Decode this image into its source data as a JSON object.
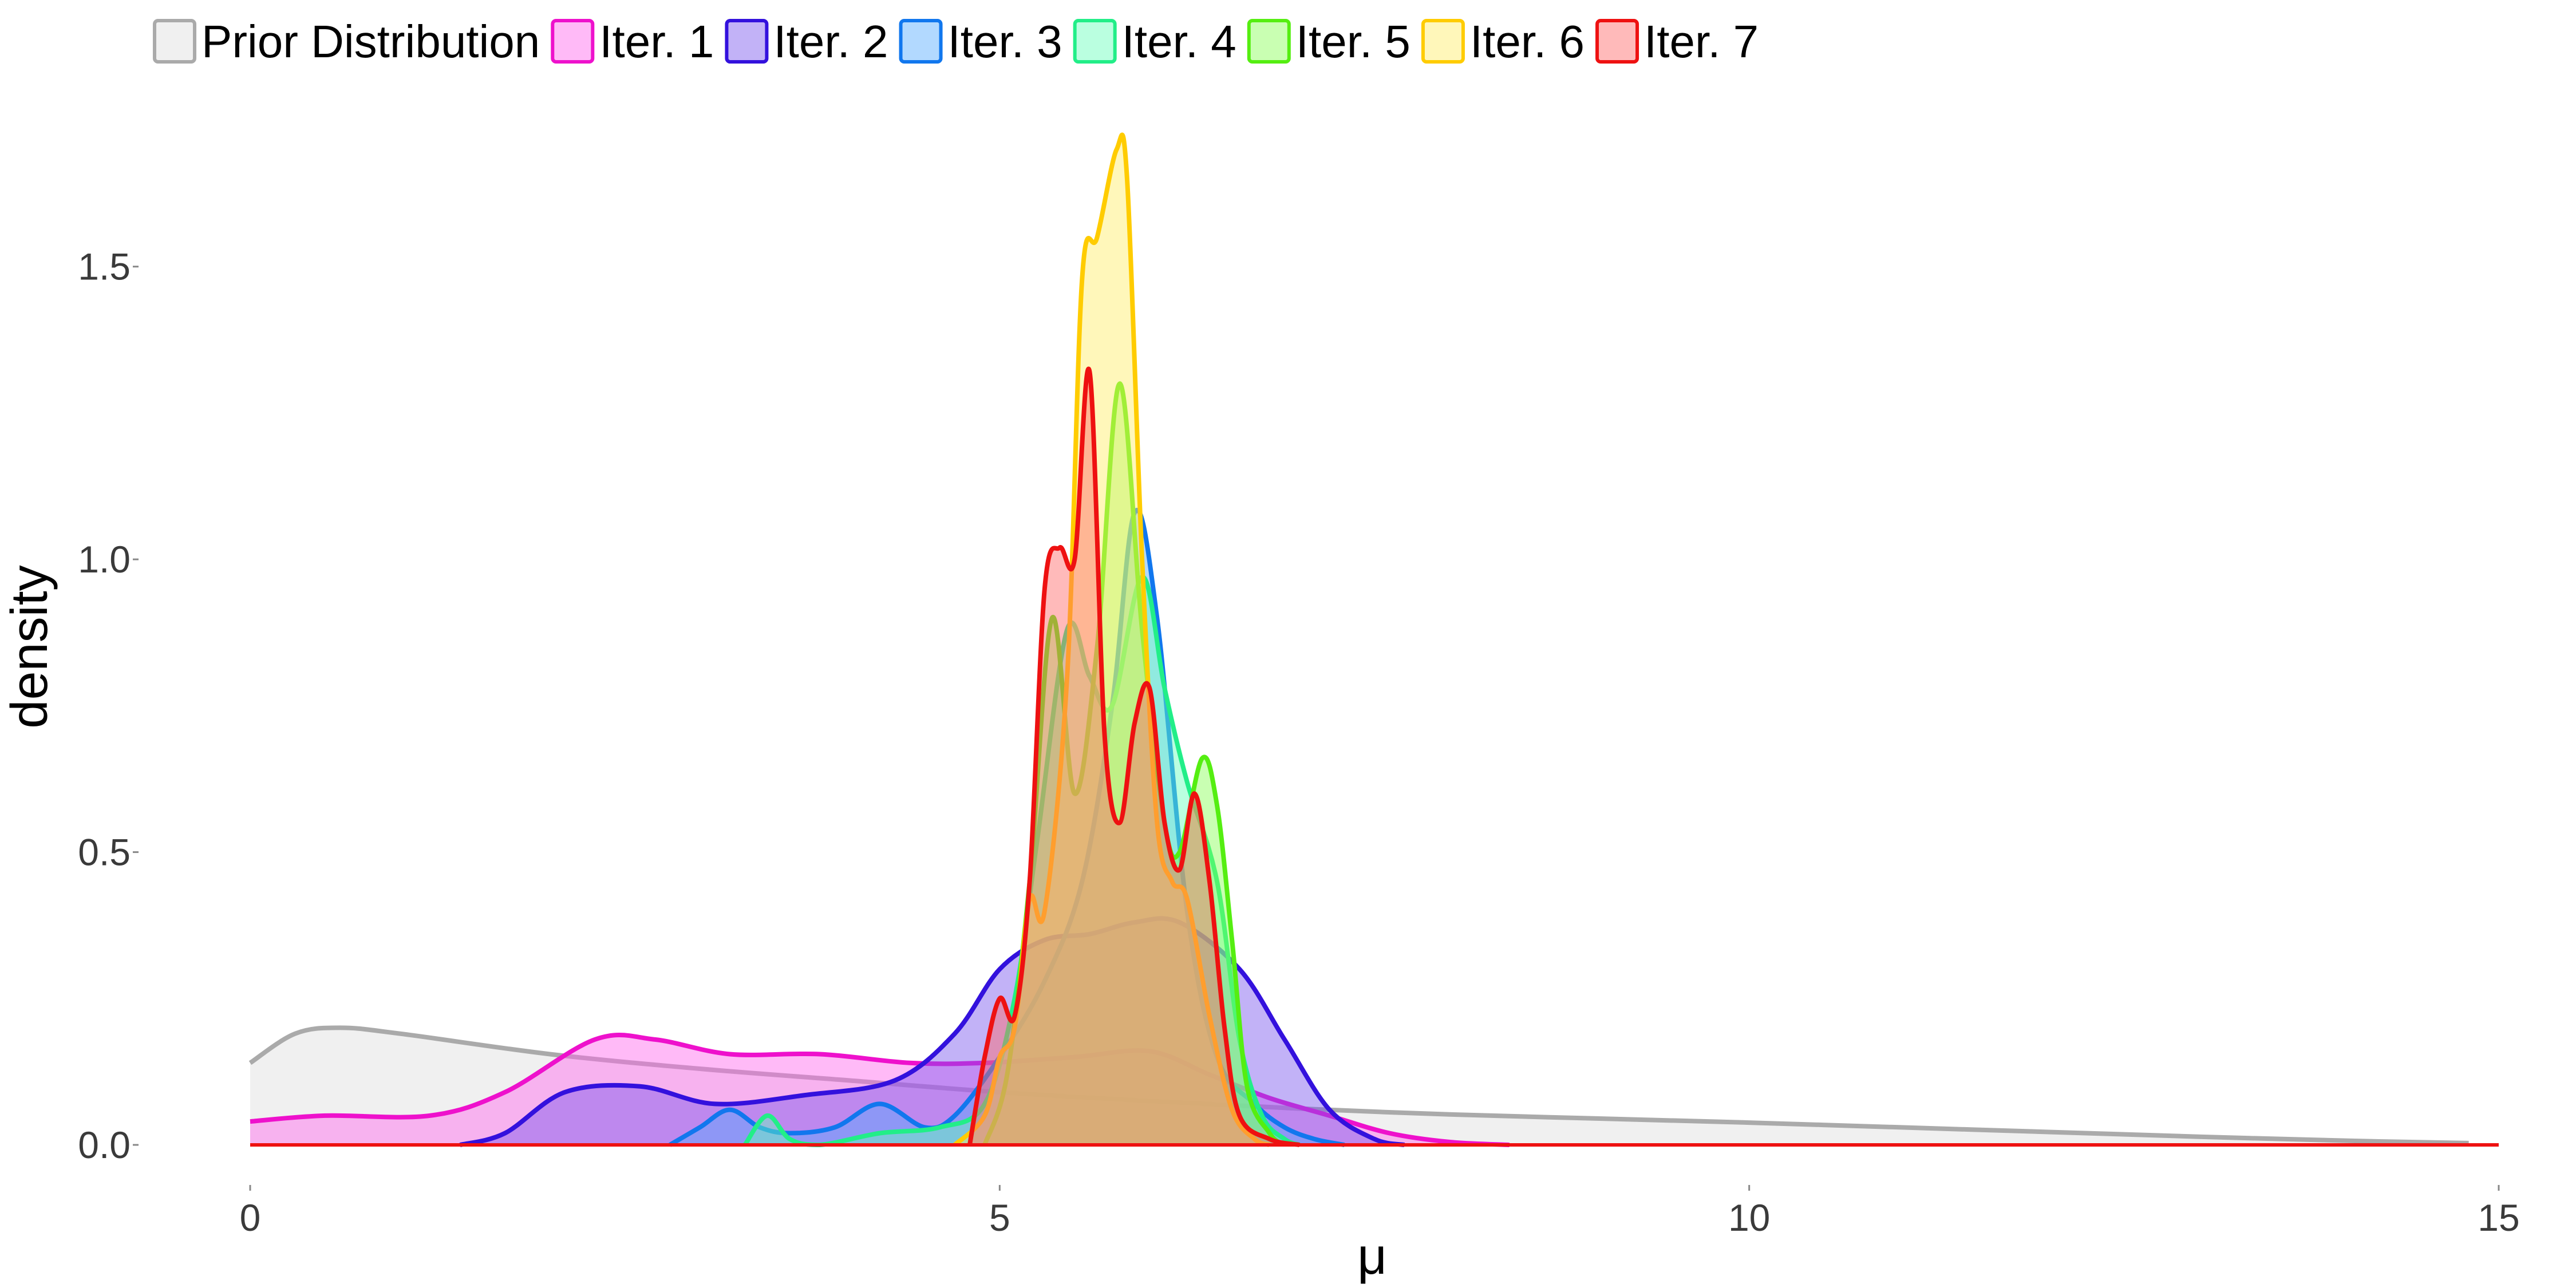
{
  "chart_data": {
    "type": "area",
    "title": "",
    "xlabel": "μ",
    "ylabel": "density",
    "xlim": [
      0,
      15
    ],
    "ylim": [
      0,
      1.75
    ],
    "x_ticks": [
      0,
      5,
      10,
      15
    ],
    "x_tick_labels": [
      "0",
      "5",
      "10",
      "15"
    ],
    "y_ticks": [
      0.0,
      0.5,
      1.0,
      1.5
    ],
    "y_tick_labels": [
      "0.0",
      "0.5",
      "1.0",
      "1.5"
    ],
    "grid": false,
    "legend_position": "top",
    "series": [
      {
        "name": "Prior Distribution",
        "color": "#AAAAAA",
        "fill": "#EEEEEE",
        "fill_opacity": 0.9,
        "points": [
          [
            0,
            0.14
          ],
          [
            0.3,
            0.19
          ],
          [
            0.6,
            0.2
          ],
          [
            1,
            0.19
          ],
          [
            2,
            0.155
          ],
          [
            3,
            0.13
          ],
          [
            4,
            0.11
          ],
          [
            5,
            0.09
          ],
          [
            6,
            0.075
          ],
          [
            7,
            0.062
          ],
          [
            8,
            0.052
          ],
          [
            9,
            0.045
          ],
          [
            10,
            0.038
          ],
          [
            11,
            0.03
          ],
          [
            12,
            0.022
          ],
          [
            13,
            0.014
          ],
          [
            14,
            0.007
          ],
          [
            14.8,
            0.003
          ]
        ]
      },
      {
        "name": "Iter. 1",
        "color": "#EE11CC",
        "fill": "#FF66EE",
        "fill_opacity": 0.45,
        "points": [
          [
            0,
            0.04
          ],
          [
            0.5,
            0.05
          ],
          [
            1.2,
            0.05
          ],
          [
            1.7,
            0.09
          ],
          [
            2.3,
            0.18
          ],
          [
            2.7,
            0.18
          ],
          [
            3.2,
            0.155
          ],
          [
            3.8,
            0.155
          ],
          [
            4.4,
            0.14
          ],
          [
            4.9,
            0.14
          ],
          [
            5.5,
            0.15
          ],
          [
            6,
            0.16
          ],
          [
            6.4,
            0.12
          ],
          [
            6.8,
            0.08
          ],
          [
            7.2,
            0.05
          ],
          [
            7.6,
            0.02
          ],
          [
            8,
            0.005
          ],
          [
            8.4,
            0
          ]
        ]
      },
      {
        "name": "Iter. 2",
        "color": "#3311DD",
        "fill": "#7755EE",
        "fill_opacity": 0.45,
        "points": [
          [
            1.4,
            0
          ],
          [
            1.7,
            0.02
          ],
          [
            2.1,
            0.09
          ],
          [
            2.6,
            0.1
          ],
          [
            3.1,
            0.07
          ],
          [
            3.7,
            0.085
          ],
          [
            4.3,
            0.11
          ],
          [
            4.7,
            0.19
          ],
          [
            5.0,
            0.3
          ],
          [
            5.3,
            0.35
          ],
          [
            5.6,
            0.36
          ],
          [
            5.9,
            0.38
          ],
          [
            6.2,
            0.38
          ],
          [
            6.6,
            0.3
          ],
          [
            6.9,
            0.18
          ],
          [
            7.2,
            0.06
          ],
          [
            7.5,
            0.01
          ],
          [
            7.7,
            0
          ]
        ]
      },
      {
        "name": "Iter. 3",
        "color": "#1177EE",
        "fill": "#55AAFF",
        "fill_opacity": 0.45,
        "points": [
          [
            2.8,
            0
          ],
          [
            3.0,
            0.03
          ],
          [
            3.2,
            0.06
          ],
          [
            3.4,
            0.03
          ],
          [
            3.6,
            0.02
          ],
          [
            3.9,
            0.03
          ],
          [
            4.2,
            0.07
          ],
          [
            4.5,
            0.03
          ],
          [
            4.7,
            0.05
          ],
          [
            5.0,
            0.15
          ],
          [
            5.3,
            0.28
          ],
          [
            5.55,
            0.45
          ],
          [
            5.75,
            0.75
          ],
          [
            5.9,
            1.08
          ],
          [
            6.05,
            0.9
          ],
          [
            6.25,
            0.4
          ],
          [
            6.45,
            0.15
          ],
          [
            6.7,
            0.07
          ],
          [
            6.9,
            0.03
          ],
          [
            7.1,
            0.01
          ],
          [
            7.3,
            0
          ]
        ]
      },
      {
        "name": "Iter. 4",
        "color": "#22EE88",
        "fill": "#66FFBB",
        "fill_opacity": 0.45,
        "points": [
          [
            3.3,
            0
          ],
          [
            3.45,
            0.05
          ],
          [
            3.6,
            0.01
          ],
          [
            3.8,
            0
          ],
          [
            4.2,
            0.02
          ],
          [
            4.6,
            0.03
          ],
          [
            4.9,
            0.07
          ],
          [
            5.1,
            0.25
          ],
          [
            5.25,
            0.52
          ],
          [
            5.45,
            0.88
          ],
          [
            5.6,
            0.8
          ],
          [
            5.75,
            0.75
          ],
          [
            5.95,
            0.97
          ],
          [
            6.1,
            0.78
          ],
          [
            6.25,
            0.62
          ],
          [
            6.45,
            0.45
          ],
          [
            6.6,
            0.18
          ],
          [
            6.75,
            0.05
          ],
          [
            6.9,
            0.01
          ],
          [
            7.0,
            0
          ]
        ]
      },
      {
        "name": "Iter. 5",
        "color": "#55EE11",
        "fill": "#88FF55",
        "fill_opacity": 0.45,
        "points": [
          [
            4.9,
            0
          ],
          [
            5.05,
            0.12
          ],
          [
            5.2,
            0.45
          ],
          [
            5.35,
            0.9
          ],
          [
            5.5,
            0.6
          ],
          [
            5.65,
            0.85
          ],
          [
            5.8,
            1.3
          ],
          [
            5.95,
            0.88
          ],
          [
            6.1,
            0.55
          ],
          [
            6.2,
            0.5
          ],
          [
            6.35,
            0.66
          ],
          [
            6.45,
            0.58
          ],
          [
            6.55,
            0.35
          ],
          [
            6.65,
            0.1
          ],
          [
            6.8,
            0.02
          ],
          [
            6.9,
            0
          ]
        ]
      },
      {
        "name": "Iter. 6",
        "color": "#FFCC00",
        "fill": "#FFEE66",
        "fill_opacity": 0.45,
        "points": [
          [
            4.7,
            0
          ],
          [
            4.9,
            0.05
          ],
          [
            5.0,
            0.15
          ],
          [
            5.1,
            0.2
          ],
          [
            5.2,
            0.42
          ],
          [
            5.3,
            0.4
          ],
          [
            5.45,
            0.8
          ],
          [
            5.55,
            1.48
          ],
          [
            5.65,
            1.55
          ],
          [
            5.78,
            1.7
          ],
          [
            5.85,
            1.65
          ],
          [
            5.95,
            1.0
          ],
          [
            6.05,
            0.55
          ],
          [
            6.15,
            0.45
          ],
          [
            6.25,
            0.42
          ],
          [
            6.4,
            0.22
          ],
          [
            6.55,
            0.06
          ],
          [
            6.7,
            0.01
          ],
          [
            6.8,
            0
          ]
        ]
      },
      {
        "name": "Iter. 7",
        "color": "#EE1111",
        "fill": "#FF6666",
        "fill_opacity": 0.45,
        "points": [
          [
            4.8,
            0
          ],
          [
            4.9,
            0.15
          ],
          [
            5.0,
            0.25
          ],
          [
            5.1,
            0.22
          ],
          [
            5.2,
            0.45
          ],
          [
            5.3,
            0.95
          ],
          [
            5.4,
            1.02
          ],
          [
            5.5,
            1.0
          ],
          [
            5.6,
            1.32
          ],
          [
            5.7,
            0.7
          ],
          [
            5.8,
            0.55
          ],
          [
            5.9,
            0.72
          ],
          [
            6.0,
            0.78
          ],
          [
            6.1,
            0.55
          ],
          [
            6.2,
            0.47
          ],
          [
            6.3,
            0.6
          ],
          [
            6.4,
            0.45
          ],
          [
            6.5,
            0.2
          ],
          [
            6.6,
            0.05
          ],
          [
            6.8,
            0.01
          ],
          [
            7.0,
            0
          ]
        ]
      }
    ]
  }
}
